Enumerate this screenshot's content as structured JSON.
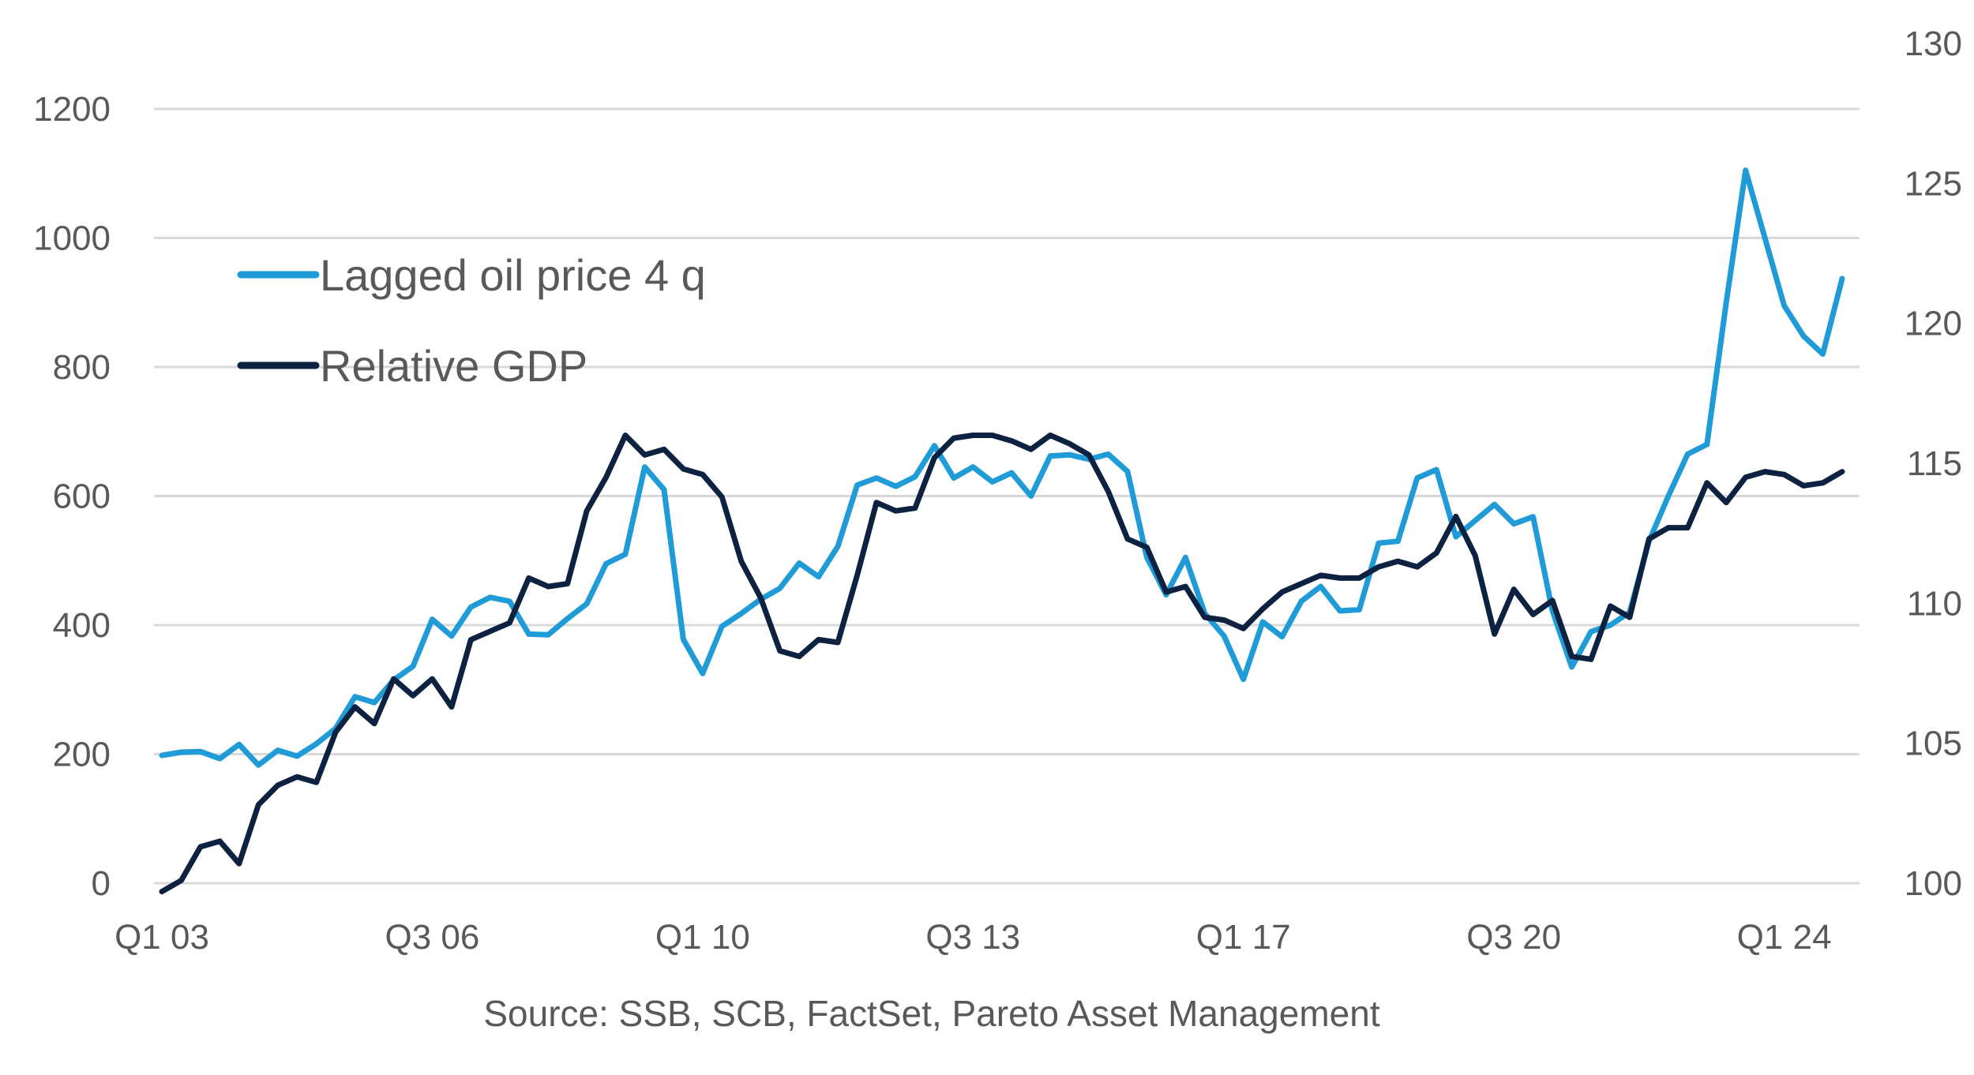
{
  "chart_data": {
    "type": "line",
    "x": [
      "Q1 03",
      "Q2 03",
      "Q3 03",
      "Q4 03",
      "Q1 04",
      "Q2 04",
      "Q3 04",
      "Q4 04",
      "Q1 05",
      "Q2 05",
      "Q3 05",
      "Q4 05",
      "Q1 06",
      "Q2 06",
      "Q3 06",
      "Q4 06",
      "Q1 07",
      "Q2 07",
      "Q3 07",
      "Q4 07",
      "Q1 08",
      "Q2 08",
      "Q3 08",
      "Q4 08",
      "Q1 09",
      "Q2 09",
      "Q3 09",
      "Q4 09",
      "Q1 10",
      "Q2 10",
      "Q3 10",
      "Q4 10",
      "Q1 11",
      "Q2 11",
      "Q3 11",
      "Q4 11",
      "Q1 12",
      "Q2 12",
      "Q3 12",
      "Q4 12",
      "Q1 13",
      "Q2 13",
      "Q3 13",
      "Q4 13",
      "Q1 14",
      "Q2 14",
      "Q3 14",
      "Q4 14",
      "Q1 15",
      "Q2 15",
      "Q3 15",
      "Q4 15",
      "Q1 16",
      "Q2 16",
      "Q3 16",
      "Q4 16",
      "Q1 17",
      "Q2 17",
      "Q3 17",
      "Q4 17",
      "Q1 18",
      "Q2 18",
      "Q3 18",
      "Q4 18",
      "Q1 19",
      "Q2 19",
      "Q3 19",
      "Q4 19",
      "Q1 20",
      "Q2 20",
      "Q3 20",
      "Q4 20",
      "Q1 21",
      "Q2 21",
      "Q3 21",
      "Q4 21",
      "Q1 22",
      "Q2 22",
      "Q3 22",
      "Q4 22",
      "Q1 23",
      "Q2 23",
      "Q3 23",
      "Q4 23",
      "Q1 24",
      "Q2 24",
      "Q3 24",
      "Q4 24"
    ],
    "x_tick_labels": [
      "Q1 03",
      "Q3 06",
      "Q1 10",
      "Q3 13",
      "Q1 17",
      "Q3 20",
      "Q1 24"
    ],
    "y_left": {
      "ticks": [
        "0",
        "200",
        "400",
        "600",
        "800",
        "1000",
        "1200"
      ],
      "range": [
        0,
        1200
      ]
    },
    "y_right": {
      "ticks": [
        "100",
        "105",
        "110",
        "115",
        "120",
        "125",
        "130"
      ],
      "range": [
        100,
        130
      ]
    },
    "series": [
      {
        "name": "Lagged oil price 4 q",
        "axis": "left",
        "color": "#1f9bd7",
        "values": [
          198,
          203,
          204,
          193,
          215,
          183,
          206,
          197,
          216,
          240,
          289,
          280,
          315,
          336,
          409,
          383,
          428,
          443,
          437,
          386,
          385,
          410,
          433,
          495,
          510,
          645,
          610,
          378,
          325,
          398,
          418,
          440,
          457,
          496,
          475,
          522,
          617,
          628,
          615,
          630,
          678,
          628,
          645,
          622,
          636,
          600,
          662,
          664,
          657,
          665,
          638,
          505,
          447,
          505,
          418,
          383,
          316,
          405,
          382,
          437,
          460,
          422,
          424,
          527,
          530,
          628,
          641,
          537,
          562,
          587,
          557,
          568,
          422,
          335,
          390,
          400,
          420,
          530,
          600,
          665,
          680,
          900,
          1105,
          1000,
          895,
          848,
          820,
          937
        ]
      },
      {
        "name": "Relative GDP",
        "axis": "right",
        "color": "#0d2240",
        "values": [
          99.7,
          100.1,
          101.3,
          101.5,
          100.7,
          102.8,
          103.5,
          103.8,
          103.6,
          105.4,
          106.3,
          105.7,
          107.3,
          106.7,
          107.3,
          106.3,
          108.7,
          109.0,
          109.3,
          110.9,
          110.6,
          110.7,
          113.3,
          114.5,
          116.0,
          115.3,
          115.5,
          114.8,
          114.6,
          113.8,
          111.5,
          110.2,
          108.3,
          108.1,
          108.7,
          108.6,
          111.0,
          113.6,
          113.3,
          113.4,
          115.2,
          115.9,
          116.0,
          116.0,
          115.8,
          115.5,
          116.0,
          115.7,
          115.3,
          114.0,
          112.3,
          112.0,
          110.4,
          110.6,
          109.5,
          109.4,
          109.1,
          109.8,
          110.4,
          110.7,
          111.0,
          110.9,
          110.9,
          111.3,
          111.5,
          111.3,
          111.8,
          113.1,
          111.7,
          108.9,
          110.5,
          109.6,
          110.1,
          108.1,
          108.0,
          109.9,
          109.5,
          112.3,
          112.7,
          112.7,
          114.3,
          113.6,
          114.5,
          114.7,
          114.6,
          114.2,
          114.3,
          114.7
        ]
      }
    ],
    "legend_position": "upper-left",
    "grid": "horizontal",
    "source": "Source: SSB, SCB, FactSet, Pareto Asset Management"
  }
}
